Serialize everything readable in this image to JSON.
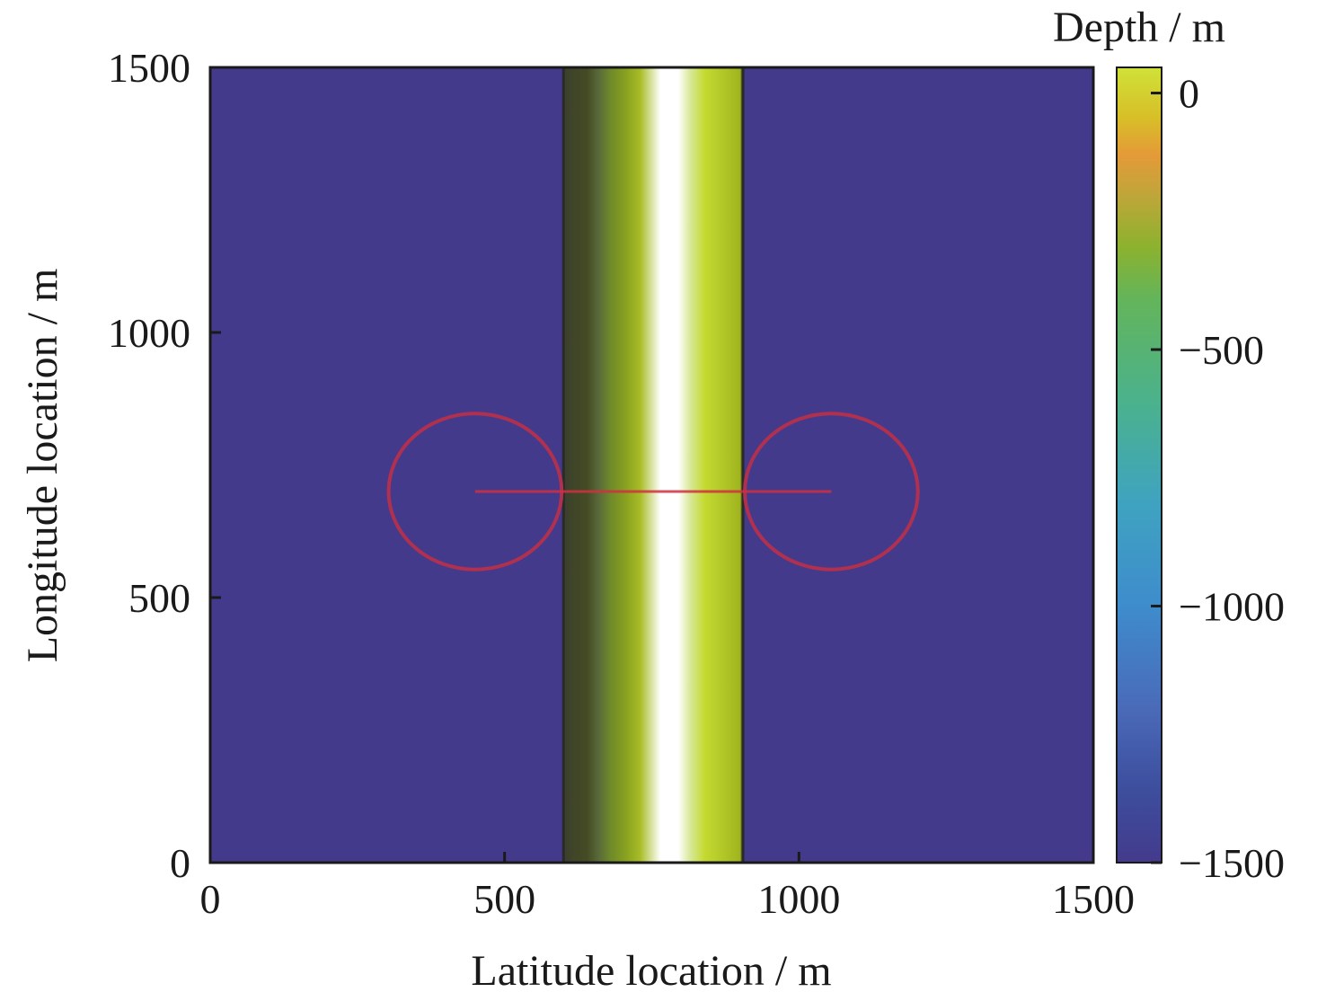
{
  "chart_data": {
    "type": "heatmap",
    "title": "",
    "xlabel": "Latitude location / m",
    "ylabel": "Longitude location / m",
    "xlim": [
      0,
      1500
    ],
    "ylim": [
      0,
      1500
    ],
    "xticks": [
      0,
      500,
      1000,
      1500
    ],
    "yticks": [
      0,
      500,
      1000,
      1500
    ],
    "grid": false,
    "colorbar": {
      "label": "Depth / m",
      "range": [
        -1500,
        50
      ],
      "ticks": [
        0,
        -500,
        -1000,
        -1500
      ],
      "tick_labels": [
        "0",
        "−500",
        "−1000",
        "−1500"
      ],
      "stops": [
        {
          "value": -1500,
          "color": "#443a8c"
        },
        {
          "value": -1350,
          "color": "#3d4f9e"
        },
        {
          "value": -1200,
          "color": "#4a6ab8"
        },
        {
          "value": -1000,
          "color": "#3e8ccc"
        },
        {
          "value": -800,
          "color": "#3fa3c0"
        },
        {
          "value": -600,
          "color": "#4bb28c"
        },
        {
          "value": -400,
          "color": "#64b45a"
        },
        {
          "value": -300,
          "color": "#8cb22e"
        },
        {
          "value": -200,
          "color": "#bfa63a"
        },
        {
          "value": -120,
          "color": "#e49a38"
        },
        {
          "value": -50,
          "color": "#d8be28"
        },
        {
          "value": 50,
          "color": "#cfe238"
        }
      ]
    },
    "background_depth": -1500,
    "trench": {
      "x_range": [
        600,
        905
      ],
      "profile": [
        {
          "x": 600,
          "color": "#3a3d2e"
        },
        {
          "x": 615,
          "color": "#3f4528"
        },
        {
          "x": 640,
          "color": "#444b24"
        },
        {
          "x": 660,
          "color": "#5a6a3a"
        },
        {
          "x": 680,
          "color": "#6e8a2a"
        },
        {
          "x": 705,
          "color": "#88a020"
        },
        {
          "x": 730,
          "color": "#a8bc26"
        },
        {
          "x": 765,
          "color": "#ffffff"
        },
        {
          "x": 795,
          "color": "#ffffff"
        },
        {
          "x": 815,
          "color": "#d8e89a"
        },
        {
          "x": 840,
          "color": "#c4da30"
        },
        {
          "x": 870,
          "color": "#b2c828"
        },
        {
          "x": 900,
          "color": "#a0b41e"
        },
        {
          "x": 905,
          "color": "#2a2a2a"
        }
      ]
    },
    "circles": [
      {
        "cx": 450,
        "cy": 700,
        "r": 147,
        "color": "#b03050"
      },
      {
        "cx": 1055,
        "cy": 700,
        "r": 147,
        "color": "#b03050"
      }
    ],
    "line": {
      "x": [
        450,
        1055
      ],
      "y": 700,
      "color": "#d03040"
    }
  }
}
